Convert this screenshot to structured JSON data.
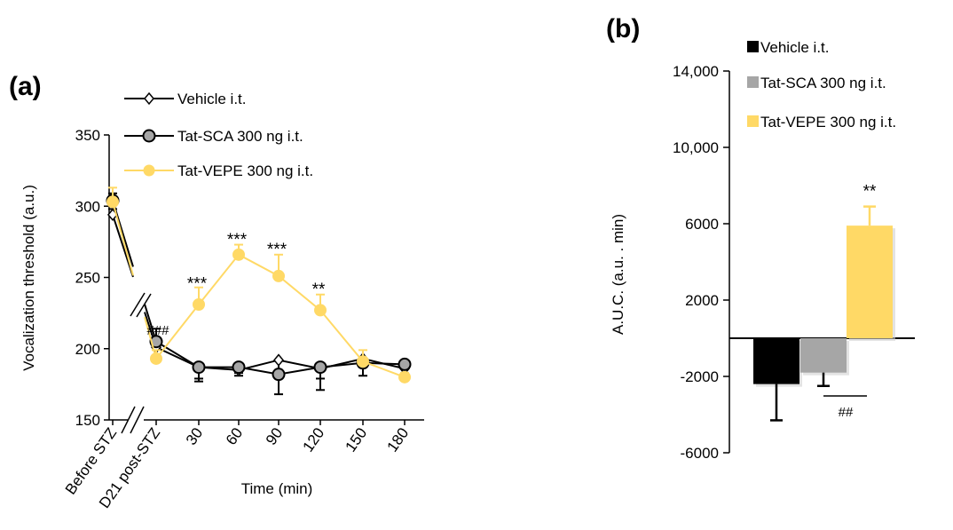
{
  "chart_data": [
    {
      "panel_label": "(a)",
      "type": "line",
      "categories": [
        "Before STZ",
        "D21 post-STZ",
        "30",
        "60",
        "90",
        "120",
        "150",
        "180"
      ],
      "xlabel": "Time (min)",
      "ylabel": "Vocalization threshold (a.u.)",
      "ylim": [
        150,
        350
      ],
      "yticks": [
        "150",
        "200",
        "250",
        "300",
        "350"
      ],
      "grid": false,
      "legend_position": "top",
      "axis_break": true,
      "series": [
        {
          "name": "Vehicle i.t.",
          "marker": "diamond-open",
          "color": "#000000",
          "values": [
            294,
            201,
            187,
            185,
            192,
            186,
            193,
            186
          ],
          "errors": [
            4,
            6,
            8,
            4,
            7,
            7,
            6,
            4
          ]
        },
        {
          "name": "Tat-SCA 300 ng i.t.",
          "marker": "circle",
          "color": "#a6a6a6",
          "values": [
            304,
            205,
            187,
            187,
            182,
            187,
            190,
            189
          ],
          "errors": [
            5,
            9,
            10,
            4,
            14,
            16,
            9,
            3
          ]
        },
        {
          "name": "Tat-VEPE 300 ng i.t.",
          "marker": "circle",
          "color": "#ffd966",
          "values": [
            303,
            193,
            231,
            266,
            251,
            227,
            191,
            180
          ],
          "errors": [
            10,
            6,
            12,
            7,
            15,
            11,
            8,
            3
          ]
        }
      ],
      "annotations": [
        {
          "category": "D21 post-STZ",
          "text": "###",
          "value": 213
        },
        {
          "category": "30",
          "text": "***",
          "value": 245
        },
        {
          "category": "60",
          "text": "***",
          "value": 276
        },
        {
          "category": "90",
          "text": "***",
          "value": 269
        },
        {
          "category": "120",
          "text": "**",
          "value": 241
        }
      ]
    },
    {
      "panel_label": "(b)",
      "type": "bar",
      "categories": [
        "Vehicle i.t.",
        "Tat-SCA 300 ng i.t.",
        "Tat-VEPE 300 ng i.t."
      ],
      "ylabel": "A.U.C. (a.u. . min)",
      "ylim": [
        -6000,
        14000
      ],
      "yticks": [
        "-6000",
        "-2000",
        "2000",
        "6000",
        "10,000",
        "14,000"
      ],
      "grid": false,
      "legend_position": "top",
      "series": [
        {
          "name": "Vehicle i.t.",
          "color": "#000000",
          "value": -2400,
          "error": 1900
        },
        {
          "name": "Tat-SCA 300 ng i.t.",
          "color": "#a6a6a6",
          "value": -1800,
          "error": 700
        },
        {
          "name": "Tat-VEPE 300 ng i.t.",
          "color": "#ffd966",
          "value": 5900,
          "error": 1000
        }
      ],
      "annotations": [
        {
          "series": "Tat-VEPE 300 ng i.t.",
          "text": "**"
        },
        {
          "between": [
            "Tat-SCA 300 ng i.t.",
            "Tat-VEPE 300 ng i.t."
          ],
          "text": "##"
        }
      ]
    }
  ]
}
